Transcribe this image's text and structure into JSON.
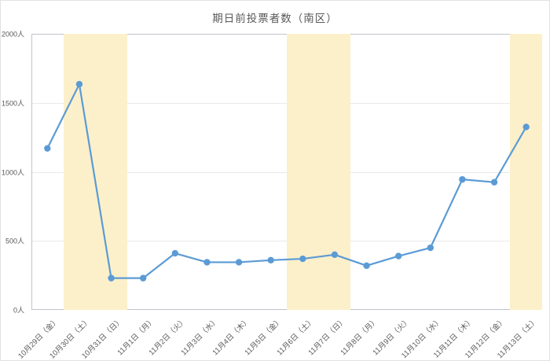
{
  "chart_data": {
    "type": "line",
    "title": "期日前投票者数（南区）",
    "categories": [
      "10月29日（金）",
      "10月30日（土）",
      "10月31日（日）",
      "11月1日（月）",
      "11月2日（火）",
      "11月3日（水）",
      "11月4日（木）",
      "11月5日（金）",
      "11月6日（土）",
      "11月7日（日）",
      "11月8日（月）",
      "11月9日（火）",
      "11月10日（水）",
      "11月11日（木）",
      "11月12日（金）",
      "11月13日（土）"
    ],
    "values": [
      1170,
      1635,
      230,
      230,
      410,
      345,
      345,
      360,
      370,
      400,
      320,
      390,
      450,
      945,
      925,
      1325
    ],
    "ylim": [
      0,
      2000
    ],
    "yticks": [
      {
        "value": 0,
        "label": "0人"
      },
      {
        "value": 500,
        "label": "500人"
      },
      {
        "value": 1000,
        "label": "1000人"
      },
      {
        "value": 1500,
        "label": "1500人"
      },
      {
        "value": 2000,
        "label": "2000人"
      }
    ],
    "grid": true,
    "legend": false,
    "xlabel": "",
    "ylabel": "",
    "weekend_bands": [
      {
        "from_index": 1,
        "to_index": 2
      },
      {
        "from_index": 8,
        "to_index": 9
      },
      {
        "from_index": 15,
        "to_index": 15
      }
    ],
    "colors": {
      "line": "#5B9BD5",
      "marker": "#5B9BD5",
      "weekend_band": "#FCF0CA",
      "axis_text": "#595959",
      "title_text": "#595959",
      "gridline": "#E9E9E9",
      "plot_border": "#BFC3C7"
    }
  }
}
